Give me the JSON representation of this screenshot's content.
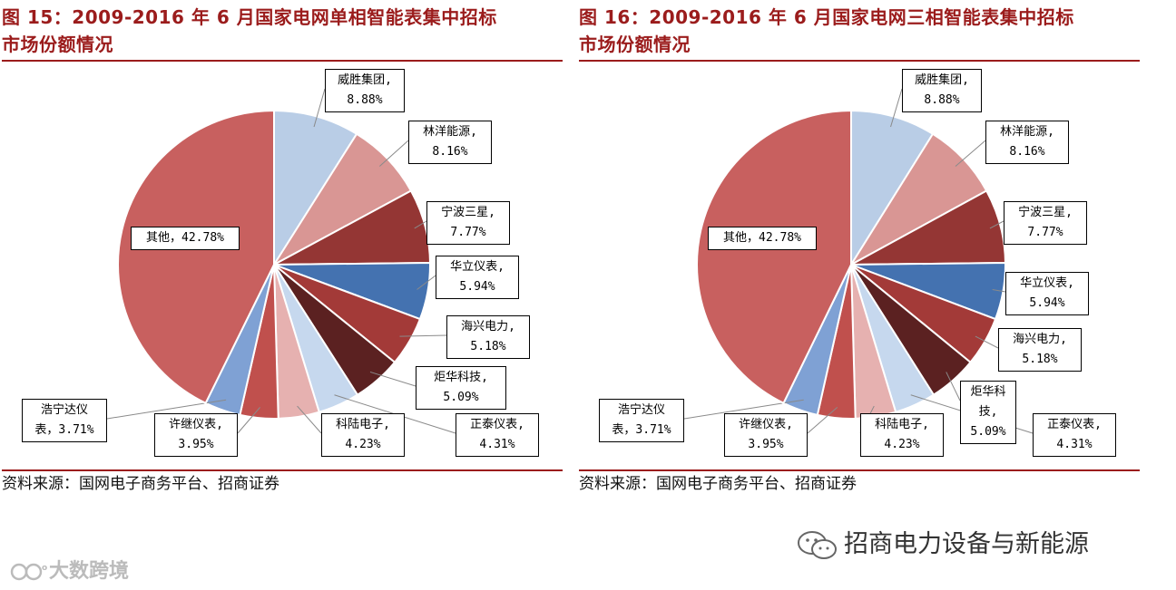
{
  "chart_data": [
    {
      "type": "pie",
      "title": "图 15：2009-2016 年 6 月国家电网单相智能表集中招标市场份额情况",
      "source": "资料来源：国网电子商务平台、招商证券",
      "slices": [
        {
          "name": "威胜集团",
          "value": 8.88,
          "label_line1": "威胜集团,",
          "label_line2": "8.88%",
          "color": "#b9cde6"
        },
        {
          "name": "林洋能源",
          "value": 8.16,
          "label_line1": "林洋能源,",
          "label_line2": "8.16%",
          "color": "#d99694"
        },
        {
          "name": "宁波三星",
          "value": 7.77,
          "label_line1": "宁波三星,",
          "label_line2": "7.77%",
          "color": "#943634"
        },
        {
          "name": "华立仪表",
          "value": 5.94,
          "label_line1": "华立仪表,",
          "label_line2": "5.94%",
          "color": "#4472b0"
        },
        {
          "name": "海兴电力",
          "value": 5.18,
          "label_line1": "海兴电力,",
          "label_line2": "5.18%",
          "color": "#a33a38"
        },
        {
          "name": "炬华科技",
          "value": 5.09,
          "label_line1": "炬华科技,",
          "label_line2": "5.09%",
          "color": "#5b2121"
        },
        {
          "name": "正泰仪表",
          "value": 4.31,
          "label_line1": "正泰仪表,",
          "label_line2": "4.31%",
          "color": "#c6d8ee"
        },
        {
          "name": "科陆电子",
          "value": 4.23,
          "label_line1": "科陆电子,",
          "label_line2": "4.23%",
          "color": "#e6b1b0"
        },
        {
          "name": "许继仪表",
          "value": 3.95,
          "label_line1": "许继仪表,",
          "label_line2": "3.95%",
          "color": "#c0504d"
        },
        {
          "name": "浩宁达仪表",
          "value": 3.71,
          "label_line1": "浩宁达仪",
          "label_line2": "表，3.71%",
          "color": "#7fa1d4"
        },
        {
          "name": "其他",
          "value": 42.78,
          "label_line1": "其他，42.78%",
          "label_line2": "",
          "color": "#c8605f"
        }
      ]
    },
    {
      "type": "pie",
      "title": "图 16：2009-2016 年 6 月国家电网三相智能表集中招标市场份额情况",
      "source": "资料来源：国网电子商务平台、招商证券",
      "slices": [
        {
          "name": "威胜集团",
          "value": 8.88,
          "label_line1": "威胜集团,",
          "label_line2": "8.88%",
          "color": "#b9cde6"
        },
        {
          "name": "林洋能源",
          "value": 8.16,
          "label_line1": "林洋能源,",
          "label_line2": "8.16%",
          "color": "#d99694"
        },
        {
          "name": "宁波三星",
          "value": 7.77,
          "label_line1": "宁波三星,",
          "label_line2": "7.77%",
          "color": "#943634"
        },
        {
          "name": "华立仪表",
          "value": 5.94,
          "label_line1": "华立仪表,",
          "label_line2": "5.94%",
          "color": "#4472b0"
        },
        {
          "name": "海兴电力",
          "value": 5.18,
          "label_line1": "海兴电力,",
          "label_line2": "5.18%",
          "color": "#a33a38"
        },
        {
          "name": "炬华科技",
          "value": 5.09,
          "label_line1": "炬华科",
          "label_line2": "技,",
          "label_line3": "5.09%",
          "color": "#5b2121"
        },
        {
          "name": "正泰仪表",
          "value": 4.31,
          "label_line1": "正泰仪表,",
          "label_line2": "4.31%",
          "color": "#c6d8ee"
        },
        {
          "name": "科陆电子",
          "value": 4.23,
          "label_line1": "科陆电子,",
          "label_line2": "4.23%",
          "color": "#e6b1b0"
        },
        {
          "name": "许继仪表",
          "value": 3.95,
          "label_line1": "许继仪表,",
          "label_line2": "3.95%",
          "color": "#c0504d"
        },
        {
          "name": "浩宁达仪表",
          "value": 3.71,
          "label_line1": "浩宁达仪",
          "label_line2": "表，3.71%",
          "color": "#7fa1d4"
        },
        {
          "name": "其他",
          "value": 42.78,
          "label_line1": "其他，42.78%",
          "label_line2": "",
          "color": "#c8605f"
        }
      ]
    }
  ],
  "titles": {
    "left_line1": "图 15：2009-2016 年 6 月国家电网单相智能表集中招标",
    "left_line2": "市场份额情况",
    "right_line1": "图 16：2009-2016 年 6 月国家电网三相智能表集中招标",
    "right_line2": "市场份额情况"
  },
  "source_text": "资料来源：国网电子商务平台、招商证券",
  "watermarks": {
    "right": "招商电力设备与新能源",
    "left": "大数跨境"
  }
}
